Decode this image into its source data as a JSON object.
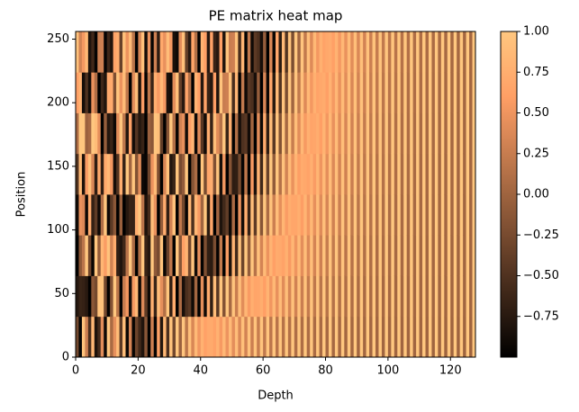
{
  "chart_data": {
    "type": "heatmap",
    "title": "PE matrix heat map",
    "x_label": "Depth",
    "y_label": "Position",
    "xlim": [
      0,
      128
    ],
    "ylim": [
      0,
      256
    ],
    "xticks": [
      0,
      20,
      40,
      60,
      80,
      100,
      120
    ],
    "yticks": [
      0,
      50,
      100,
      150,
      200,
      250
    ],
    "colormap": "copper",
    "colorbar": {
      "lim": [
        -1,
        1
      ],
      "ticks": [
        {
          "value": 1,
          "label": "1.00"
        },
        0.75,
        {
          "value": 0.5,
          "label": "0.50"
        },
        0.25,
        {
          "value": 0,
          "label": "0.00"
        },
        {
          "value": -0.25,
          "label": "−0.25"
        },
        {
          "value": -0.5,
          "label": "−0.50"
        },
        {
          "value": -0.75,
          "label": "−0.75"
        }
      ]
    },
    "z": [
      [
        -0.29,
        -0.77,
        -0.99,
        -0.89,
        -0.49,
        0.07,
        0.61,
        0.95
      ],
      [
        -0.96,
        -0.64,
        -0.11,
        0.46,
        0.87,
        1,
        0.79,
        0.32
      ],
      [
        0.96,
        -0.67,
        0.16,
        0.39,
        -0.82,
        1,
        -0.86,
        0.53
      ],
      [
        0.28,
        -0.74,
        0.99,
        -0.92,
        0.57,
        -0.03,
        -0.51,
        0.85
      ],
      [
        -0.54,
        -0.99,
        -0.3,
        0.73,
        0.93,
        0.05,
        -0.88,
        -0.8
      ],
      [
        0.84,
        -0.13,
        -0.95,
        -0.68,
        0.37,
        1,
        0.47,
        -0.6
      ],
      [
        -0.82,
        -0.27,
        1,
        -0.41,
        -0.71,
        0.89,
        0.09,
        -0.96
      ],
      [
        -0.58,
        0.96,
        -0.08,
        -0.91,
        0.71,
        0.45,
        -1,
        0.28
      ],
      [
        0.42,
        0.96,
        0.82,
        0.1,
        -0.7,
        -1,
        -0.61,
        0.29
      ],
      [
        -0.91,
        -0.27,
        0.57,
        1,
        0.71,
        -0.06,
        -0.79,
        -0.96
      ],
      [
        1,
        -0.98,
        0.95,
        -0.91,
        0.85,
        -0.77,
        0.7,
        -0.61
      ],
      [
        0.06,
        -0.18,
        0.31,
        -0.42,
        0.53,
        -0.64,
        0.72,
        -0.79
      ],
      [
        0.45,
        0.99,
        0.73,
        -0.13,
        -0.87,
        -0.92,
        -0.21,
        0.66
      ],
      [
        0.89,
        0.17,
        -0.69,
        -0.99,
        -0.49,
        0.41,
        0.98,
        0.75
      ],
      [
        -0.43,
        -0.97,
        -0.8,
        -0.04,
        0.75,
        0.98,
        0.48,
        -0.35
      ],
      [
        0.91,
        0.24,
        -0.6,
        -1,
        -0.66,
        0.2,
        0.88,
        0.94
      ],
      [
        -0.94,
        0.51,
        0.17,
        -0.76,
        1,
        -0.78,
        0.19,
        0.48
      ],
      [
        0.34,
        -0.86,
        0.99,
        -0.65,
        0.01,
        0.63,
        -0.98,
        0.88
      ],
      [
        -0.95,
        0.55,
        0.07,
        -0.66,
        0.98,
        -0.88,
        0.43,
        0.17
      ],
      [
        -0.32,
        0.84,
        -1,
        0.75,
        -0.19,
        -0.47,
        0.9,
        -0.99
      ],
      [
        -0.6,
        -0.93,
        0.11,
        0.99,
        0.42,
        -0.76,
        -0.82,
        0.34
      ],
      [
        -0.8,
        0.38,
        0.99,
        0.16,
        -0.91,
        -0.65,
        0.57,
        0.94
      ],
      [
        -0.14,
        -0.4,
        -0.64,
        -0.82,
        -0.95,
        -1,
        -0.98,
        -0.87
      ],
      [
        -0.99,
        -0.91,
        -0.77,
        -0.57,
        -0.31,
        -0.03,
        0.19,
        0.49
      ],
      [
        0.29,
        0.77,
        1,
        0.89,
        0.48,
        -0.12,
        -0.64,
        -0.96
      ],
      [
        -0.96,
        -0.64,
        -0.1,
        0.46,
        0.88,
        0.99,
        0.76,
        0.29
      ],
      [
        0.63,
        0.9,
        -0.26,
        -1,
        -0.21,
        0.92,
        0.55,
        -0.72
      ],
      [
        -0.78,
        0.44,
        0.97,
        -0.08,
        -0.98,
        -0.39,
        0.84,
        0.7
      ],
      [
        0.85,
        0.11,
        -0.94,
        0.73,
        0.34,
        -0.99,
        0.54,
        0.46
      ],
      [
        -0.53,
        0.99,
        -0.34,
        -0.69,
        0.94,
        -0.16,
        -0.84,
        0.89
      ],
      [
        0.96,
        -0.68,
        0.19,
        0.32,
        -0.78,
        0.99,
        -0.9,
        0.54
      ],
      [
        -0.28,
        0.74,
        -0.98,
        0.95,
        -0.63,
        0.12,
        0.42,
        -0.84
      ],
      [
        1,
        -1,
        0.99,
        -0.98,
        0.97,
        -0.95,
        0.93,
        -0.91
      ],
      [
        -0.03,
        0.09,
        -0.15,
        0.21,
        -0.26,
        0.31,
        -0.37,
        0.42
      ],
      [
        0.98,
        -0.85,
        0.6,
        -0.27,
        -0.09,
        0.45,
        -0.75,
        0.93
      ],
      [
        0.18,
        -0.53,
        0.8,
        -0.96,
        1,
        -0.89,
        0.66,
        -0.37
      ],
      [
        0.93,
        -0.44,
        -0.28,
        0.85,
        -0.98,
        0.59,
        0.1,
        -0.75
      ],
      [
        0.36,
        -0.9,
        0.96,
        -0.52,
        -0.16,
        0.81,
        -1,
        0.66
      ],
      [
        0.86,
        0.03,
        -0.89,
        0.84,
        0.08,
        -0.92,
        0.8,
        0.11
      ],
      [
        0.51,
        -1,
        0.46,
        0.55,
        -1,
        0.4,
        0.6,
        -0.99
      ],
      [
        0.78,
        0.43,
        -0.98,
        0.01,
        0.97,
        -0.45,
        -0.77,
        0.8
      ],
      [
        0.62,
        -0.9,
        -0.21,
        1,
        -0.24,
        -0.89,
        0.64,
        0.61
      ],
      [
        0.7,
        0.72,
        -0.69,
        -0.74,
        0.67,
        0.75,
        -0.65,
        -0.77
      ],
      [
        0.71,
        -0.7,
        -0.73,
        0.67,
        0.75,
        -0.66,
        -0.76,
        0.64
      ],
      [
        0.63,
        0.9,
        -0.23,
        -1,
        -0.2,
        0.91,
        0.6,
        -0.65
      ],
      [
        0.78,
        -0.44,
        -0.97,
        0.02,
        0.98,
        0.41,
        -0.8,
        -0.76
      ],
      [
        0.55,
        0.98,
        0.22,
        -0.81,
        -0.85,
        0.14,
        0.97,
        0.61
      ],
      [
        0.84,
        -0.18,
        -0.98,
        -0.59,
        0.52,
        0.99,
        0.26,
        -0.79
      ],
      [
        0.49,
        1,
        0.57,
        -0.39,
        -0.99,
        -0.65,
        0.29,
        0.97
      ],
      [
        0.87,
        0.05,
        -0.82,
        -0.92,
        -0.16,
        0.76,
        0.96,
        0.26
      ],
      [
        0.43,
        0.97,
        0.81,
        0.07,
        -0.72,
        -0.99,
        -0.55,
        0.29
      ],
      [
        0.9,
        0.26,
        -0.58,
        -1,
        -0.7,
        0.11,
        0.83,
        0.96
      ],
      [
        0.37,
        0.91,
        0.95,
        0.47,
        -0.27,
        -0.86,
        -0.98,
        -0.55
      ],
      [
        0.93,
        0.42,
        -0.32,
        -0.88,
        -0.96,
        -0.51,
        0.22,
        0.83
      ],
      [
        0.32,
        0.83,
        1,
        0.75,
        0.19,
        -0.45,
        -0.9,
        -0.98
      ],
      [
        0.95,
        0.56,
        -0.07,
        -0.67,
        -0.98,
        -0.89,
        -0.44,
        0.21
      ],
      [
        0.28,
        0.75,
        0.99,
        0.91,
        0.55,
        0.01,
        -0.53,
        -0.9
      ],
      [
        0.96,
        0.66,
        0.15,
        -0.41,
        -0.83,
        -1,
        -0.85,
        -0.43
      ],
      [
        0.25,
        0.67,
        0.94,
        0.99,
        0.8,
        0.42,
        -0.06,
        -0.52
      ],
      [
        0.97,
        0.74,
        0.33,
        -0.15,
        -0.6,
        -0.91,
        -1,
        -0.85
      ],
      [
        0.21,
        0.6,
        0.88,
        1,
        0.94,
        0.72,
        0.36,
        -0.06
      ],
      [
        0.98,
        0.8,
        0.48,
        0.08,
        -0.34,
        -0.7,
        -0.93,
        -1
      ],
      [
        0.18,
        0.52,
        0.8,
        0.96,
        1,
        0.9,
        0.68,
        0.36
      ],
      [
        0.98,
        0.85,
        0.61,
        0.28,
        -0.09,
        -0.44,
        -0.74,
        -0.93
      ],
      [
        0.16,
        0.46,
        0.72,
        0.9,
        0.99,
        0.98,
        0.87,
        0.68
      ],
      [
        0.99,
        0.89,
        0.7,
        0.44,
        0.13,
        -0.19,
        -0.49,
        -0.74
      ],
      [
        0.14,
        0.41,
        0.64,
        0.82,
        0.95,
        1,
        0.97,
        0.87
      ],
      [
        0.99,
        0.91,
        0.77,
        0.57,
        0.32,
        0.04,
        -0.23,
        -0.49
      ],
      [
        0.12,
        0.35,
        0.56,
        0.74,
        0.88,
        0.97,
        1,
        0.97
      ],
      [
        0.99,
        0.94,
        0.83,
        0.67,
        0.47,
        0.25,
        0.01,
        -0.23
      ],
      [
        0.1,
        0.31,
        0.5,
        0.67,
        0.81,
        0.91,
        0.98,
        1
      ],
      [
        0.99,
        0.95,
        0.87,
        0.75,
        0.59,
        0.42,
        0.22,
        0.01
      ],
      [
        0.09,
        0.27,
        0.43,
        0.59,
        0.72,
        0.84,
        0.92,
        0.98
      ],
      [
        1,
        0.96,
        0.9,
        0.81,
        0.69,
        0.55,
        0.39,
        0.22
      ],
      [
        0.08,
        0.23,
        0.38,
        0.52,
        0.64,
        0.76,
        0.85,
        0.92
      ],
      [
        1,
        0.97,
        0.92,
        0.85,
        0.76,
        0.65,
        0.53,
        0.39
      ],
      [
        0.07,
        0.2,
        0.33,
        0.45,
        0.57,
        0.67,
        0.77,
        0.85
      ],
      [
        1,
        0.98,
        0.94,
        0.89,
        0.82,
        0.74,
        0.64,
        0.53
      ],
      [
        0.06,
        0.17,
        0.29,
        0.4,
        0.5,
        0.6,
        0.69,
        0.77
      ],
      [
        1,
        0.98,
        0.96,
        0.92,
        0.86,
        0.8,
        0.72,
        0.64
      ],
      [
        0.05,
        0.15,
        0.25,
        0.35,
        0.44,
        0.53,
        0.61,
        0.69
      ],
      [
        1,
        0.99,
        0.97,
        0.94,
        0.9,
        0.85,
        0.79,
        0.72
      ],
      [
        0.04,
        0.13,
        0.22,
        0.3,
        0.38,
        0.46,
        0.54,
        0.61
      ],
      [
        1,
        0.99,
        0.98,
        0.95,
        0.92,
        0.89,
        0.84,
        0.79
      ],
      [
        0.04,
        0.11,
        0.19,
        0.27,
        0.33,
        0.41,
        0.47,
        0.54
      ],
      [
        1,
        0.99,
        0.98,
        0.97,
        0.94,
        0.91,
        0.88,
        0.84
      ],
      [
        0.03,
        0.1,
        0.16,
        0.23,
        0.3,
        0.35,
        0.42,
        0.47
      ],
      [
        1,
        1,
        0.99,
        0.97,
        0.96,
        0.94,
        0.91,
        0.88
      ],
      [
        0.03,
        0.09,
        0.14,
        0.2,
        0.26,
        0.31,
        0.36,
        0.42
      ],
      [
        1,
        1,
        0.99,
        0.98,
        0.97,
        0.95,
        0.93,
        0.91
      ],
      [
        0.02,
        0.07,
        0.12,
        0.17,
        0.22,
        0.27,
        0.32,
        0.37
      ],
      [
        1,
        1,
        0.99,
        0.99,
        0.98,
        0.96,
        0.95,
        0.93
      ],
      [
        0.02,
        0.06,
        0.11,
        0.15,
        0.19,
        0.23,
        0.28,
        0.32
      ],
      [
        1,
        1,
        0.99,
        0.99,
        0.98,
        0.97,
        0.96,
        0.95
      ],
      [
        0.02,
        0.06,
        0.09,
        0.13,
        0.17,
        0.2,
        0.24,
        0.28
      ],
      [
        1,
        1,
        1,
        0.99,
        0.99,
        0.98,
        0.97,
        0.96
      ],
      [
        0.02,
        0.05,
        0.08,
        0.11,
        0.14,
        0.18,
        0.21,
        0.24
      ],
      [
        1,
        1,
        1,
        0.99,
        0.99,
        0.98,
        0.98,
        0.97
      ],
      [
        0.01,
        0.04,
        0.07,
        0.1,
        0.13,
        0.15,
        0.18,
        0.21
      ],
      [
        1,
        1,
        1,
        1,
        0.99,
        0.99,
        0.98,
        0.98
      ],
      [
        0.01,
        0.04,
        0.06,
        0.08,
        0.11,
        0.13,
        0.16,
        0.18
      ],
      [
        1,
        1,
        1,
        1,
        0.99,
        0.99,
        0.99,
        0.98
      ],
      [
        0.01,
        0.03,
        0.05,
        0.07,
        0.09,
        0.11,
        0.14,
        0.16
      ],
      [
        1,
        1,
        1,
        1,
        1,
        0.99,
        0.99,
        0.99
      ],
      [
        0.01,
        0.03,
        0.05,
        0.06,
        0.08,
        0.1,
        0.12,
        0.14
      ],
      [
        1,
        1,
        1,
        1,
        1,
        1,
        0.99,
        0.99
      ],
      [
        0.01,
        0.02,
        0.04,
        0.05,
        0.07,
        0.09,
        0.1,
        0.12
      ],
      [
        1,
        1,
        1,
        1,
        1,
        1,
        1,
        1
      ],
      [
        0.01,
        0.02,
        0.03,
        0.05,
        0.06,
        0.07,
        0.09,
        0.1
      ],
      [
        1,
        1,
        1,
        1,
        1,
        1,
        1,
        1
      ],
      [
        0.01,
        0.02,
        0.03,
        0.04,
        0.05,
        0.06,
        0.08,
        0.09
      ],
      [
        1,
        1,
        1,
        1,
        1,
        1,
        1,
        1
      ],
      [
        0.01,
        0.02,
        0.03,
        0.04,
        0.05,
        0.06,
        0.07,
        0.08
      ],
      [
        1,
        1,
        1,
        1,
        1,
        1,
        1,
        1
      ],
      [
        0,
        0.01,
        0.02,
        0.03,
        0.04,
        0.05,
        0.06,
        0.07
      ],
      [
        1,
        1,
        1,
        1,
        1,
        1,
        1,
        1
      ],
      [
        0,
        0.01,
        0.02,
        0.03,
        0.03,
        0.04,
        0.05,
        0.06
      ],
      [
        1,
        1,
        1,
        1,
        1,
        1,
        1,
        1
      ],
      [
        0,
        0.01,
        0.02,
        0.02,
        0.03,
        0.04,
        0.04,
        0.05
      ],
      [
        1,
        1,
        1,
        1,
        1,
        1,
        1,
        1
      ],
      [
        0,
        0.01,
        0.01,
        0.02,
        0.03,
        0.03,
        0.04,
        0.04
      ],
      [
        1,
        1,
        1,
        1,
        1,
        1,
        1,
        1
      ],
      [
        0,
        0.01,
        0.01,
        0.02,
        0.02,
        0.03,
        0.03,
        0.04
      ],
      [
        1,
        1,
        1,
        1,
        1,
        1,
        1,
        1
      ],
      [
        0,
        0.01,
        0.01,
        0.01,
        0.02,
        0.02,
        0.03,
        0.03
      ],
      [
        1,
        1,
        1,
        1,
        1,
        1,
        1,
        1
      ],
      [
        0,
        0.01,
        0.01,
        0.01,
        0.02,
        0.02,
        0.02,
        0.03
      ],
      [
        1,
        1,
        1,
        1,
        1,
        1,
        1,
        1
      ]
    ]
  }
}
